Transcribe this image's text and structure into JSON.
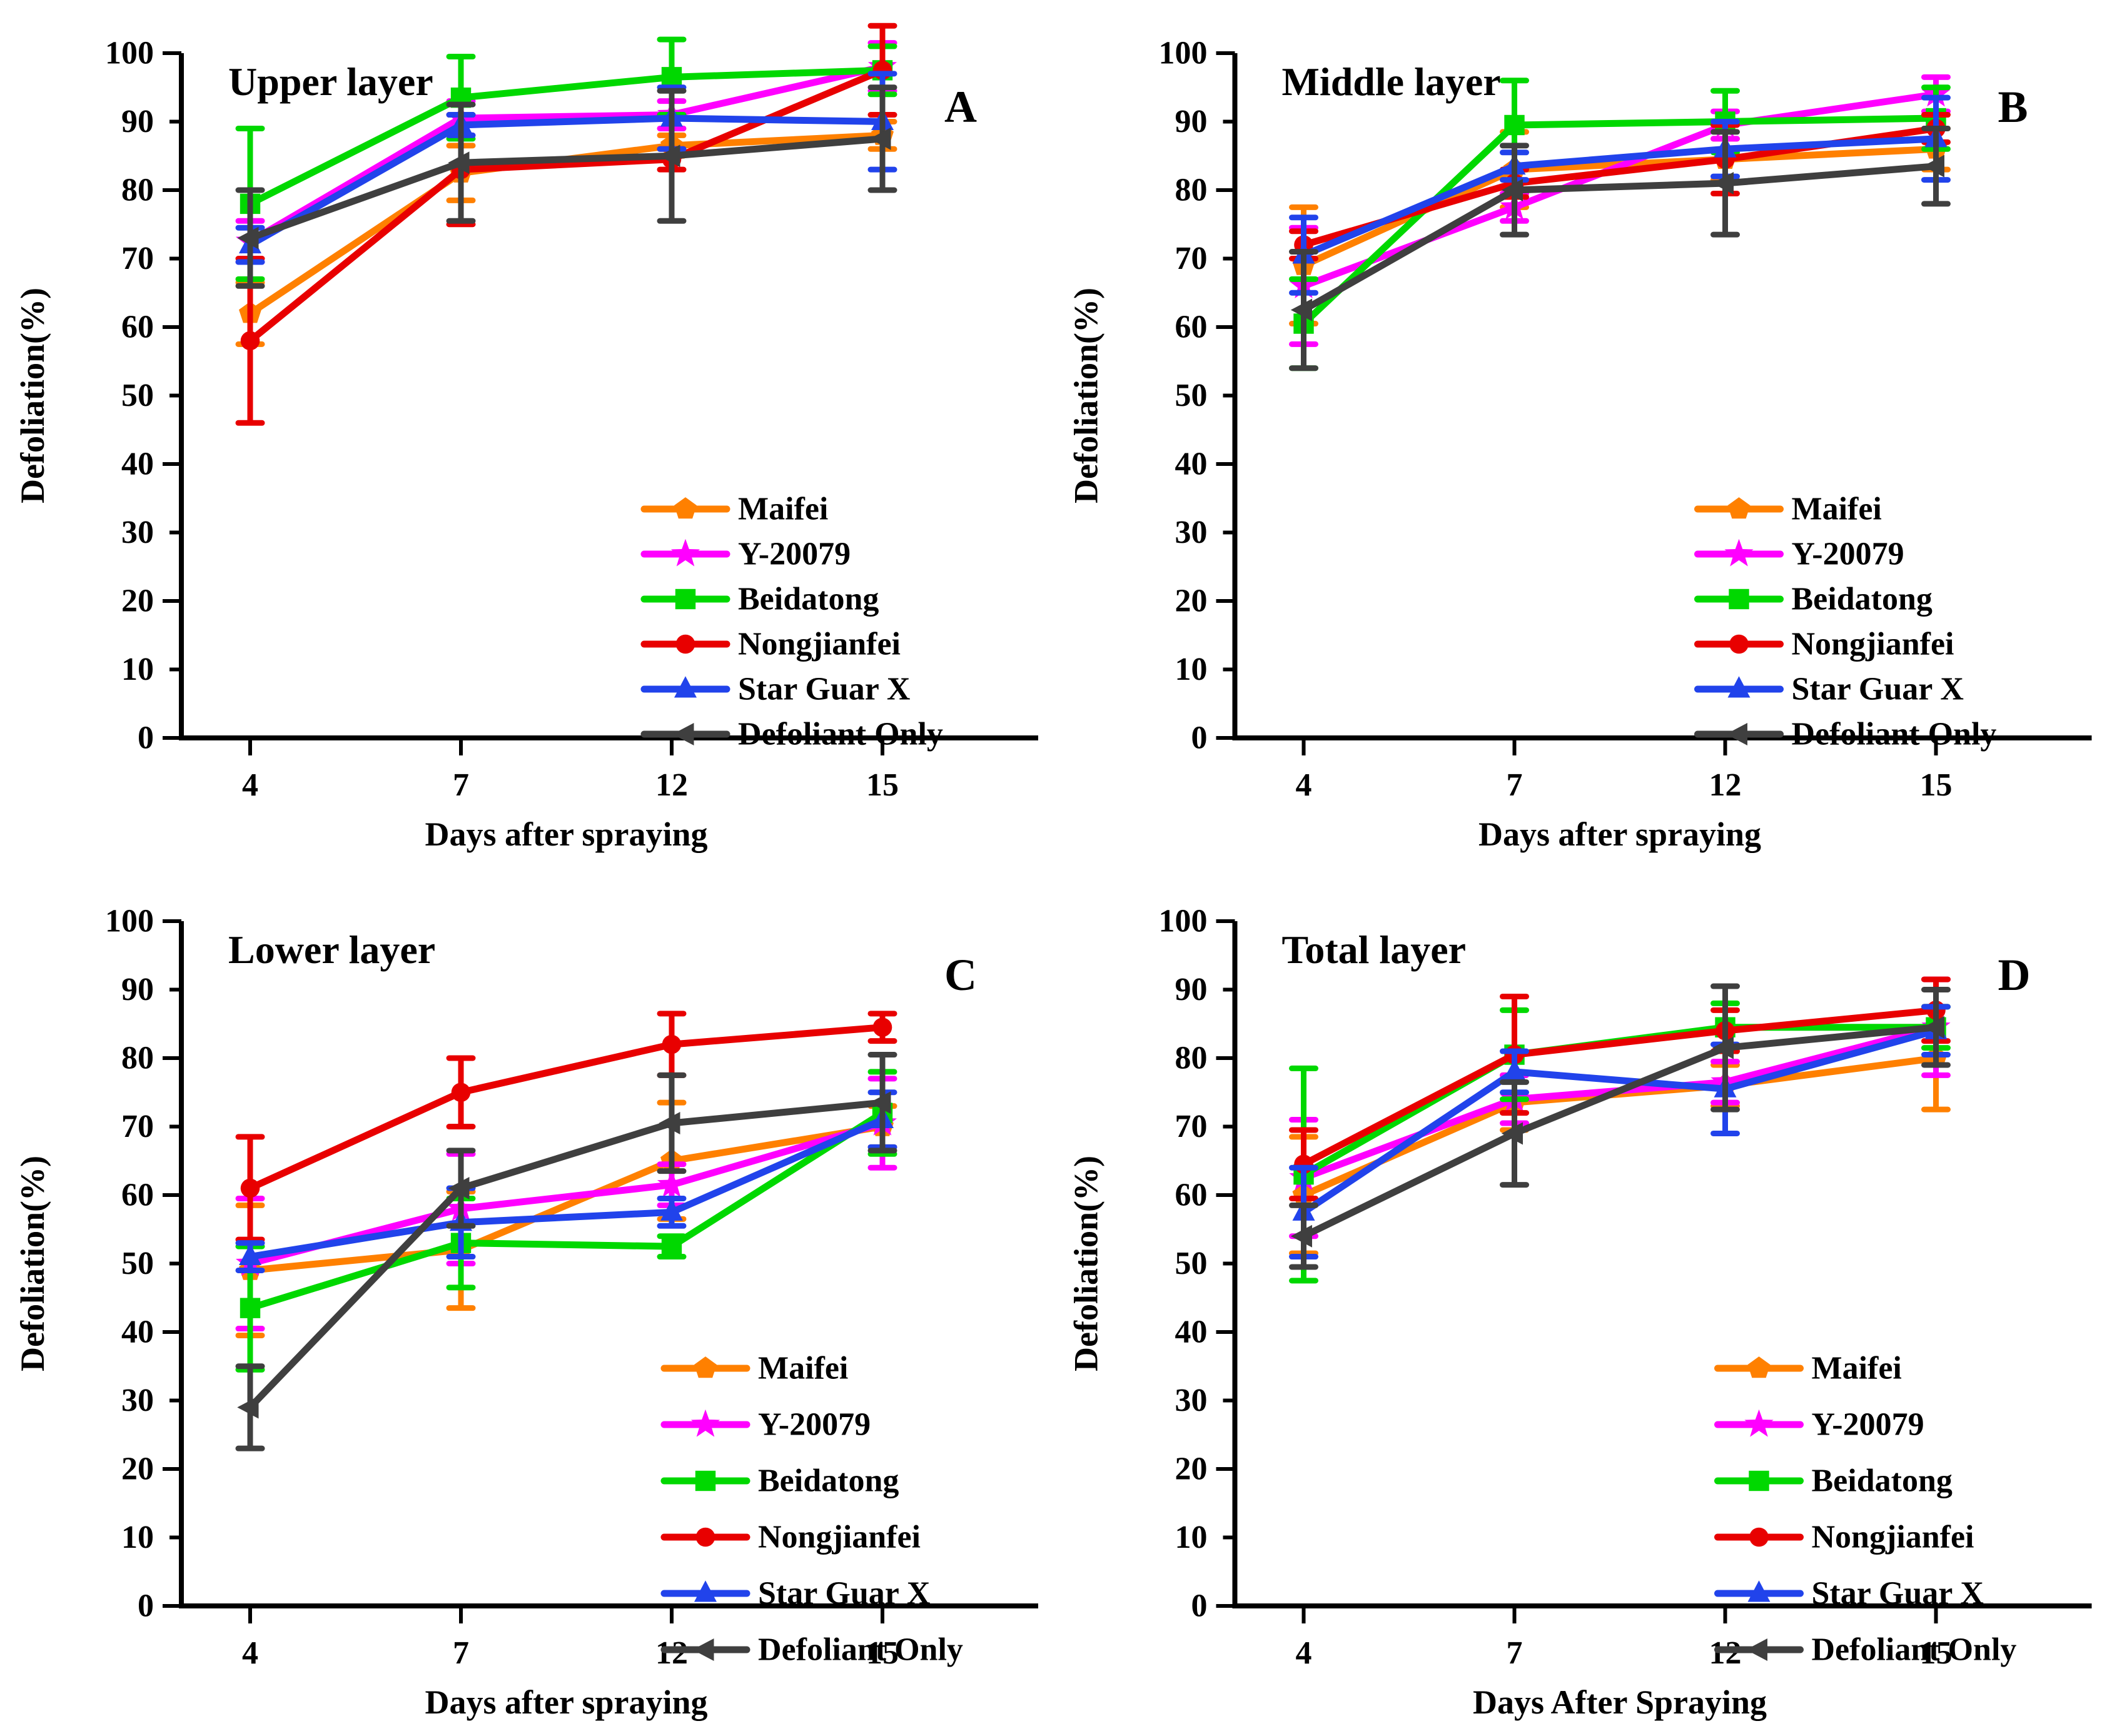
{
  "page": {
    "background": "#ffffff"
  },
  "legend_labels": [
    "Maifei",
    "Y-20079",
    "Beidatong",
    "Nongjianfei",
    "Star Guar X",
    "Defoliant Only"
  ],
  "colors": {
    "maifei": "#FF8000",
    "y20079": "#FF00FF",
    "beidatong": "#00D800",
    "nongjianfei": "#E80000",
    "star_guar_x": "#2143EB",
    "defoliant_only": "#3F3F3F",
    "axis": "#000000"
  },
  "chart_data": [
    {
      "type": "line",
      "panel_letter": "A",
      "title": "Upper layer",
      "xlabel": "Days after spraying",
      "ylabel": "Defoliation(%)",
      "x_categories": [
        "4",
        "7",
        "12",
        "15"
      ],
      "y_ticks": [
        "0",
        "10",
        "20",
        "30",
        "40",
        "50",
        "60",
        "70",
        "80",
        "90",
        "100"
      ],
      "ylim": [
        0,
        100
      ],
      "grid": false,
      "legend_position": "right-center",
      "series": [
        {
          "name": "Maifei",
          "color": "#FF8000",
          "marker": "pentagon",
          "values": [
            62,
            82.5,
            86.5,
            88
          ],
          "errors": [
            4.5,
            4,
            1.5,
            2
          ]
        },
        {
          "name": "Y-20079",
          "color": "#FF00FF",
          "marker": "star",
          "values": [
            72.5,
            90.5,
            91,
            98
          ],
          "errors": [
            3,
            2.5,
            2,
            3.5
          ]
        },
        {
          "name": "Beidatong",
          "color": "#00D800",
          "marker": "square",
          "values": [
            78,
            93.5,
            96.5,
            97.5
          ],
          "errors": [
            11,
            6,
            5.5,
            3.5
          ]
        },
        {
          "name": "Nongjianfei",
          "color": "#E80000",
          "marker": "circle",
          "values": [
            58,
            83,
            84.5,
            97.5
          ],
          "errors": [
            12,
            8,
            1.5,
            6.5
          ]
        },
        {
          "name": "Star Guar X",
          "color": "#2143EB",
          "marker": "triangle-up",
          "values": [
            72,
            89.5,
            90.5,
            90
          ],
          "errors": [
            2.5,
            1.5,
            4.5,
            7
          ]
        },
        {
          "name": "Defoliant Only",
          "color": "#3F3F3F",
          "marker": "triangle-left",
          "values": [
            73,
            84,
            85,
            87.5
          ],
          "errors": [
            7,
            8.5,
            9.5,
            7.5
          ]
        }
      ]
    },
    {
      "type": "line",
      "panel_letter": "B",
      "title": "Middle layer",
      "xlabel": "Days after spraying",
      "ylabel": "Defoliation(%)",
      "x_categories": [
        "4",
        "7",
        "12",
        "15"
      ],
      "y_ticks": [
        "0",
        "10",
        "20",
        "30",
        "40",
        "50",
        "60",
        "70",
        "80",
        "90",
        "100"
      ],
      "ylim": [
        0,
        100
      ],
      "grid": false,
      "legend_position": "right-center",
      "series": [
        {
          "name": "Maifei",
          "color": "#FF8000",
          "marker": "pentagon",
          "values": [
            69,
            83,
            84.5,
            86
          ],
          "errors": [
            8.5,
            5.5,
            3,
            3
          ]
        },
        {
          "name": "Y-20079",
          "color": "#FF00FF",
          "marker": "star",
          "values": [
            66,
            77.5,
            89.5,
            94
          ],
          "errors": [
            8.5,
            2,
            2,
            2.5
          ]
        },
        {
          "name": "Beidatong",
          "color": "#00D800",
          "marker": "square",
          "values": [
            60.5,
            89.5,
            90,
            90.5
          ],
          "errors": [
            6.5,
            6.5,
            4.5,
            4.5
          ]
        },
        {
          "name": "Nongjianfei",
          "color": "#E80000",
          "marker": "circle",
          "values": [
            72,
            81,
            84.5,
            89
          ],
          "errors": [
            2,
            2,
            5,
            2
          ]
        },
        {
          "name": "Star Guar X",
          "color": "#2143EB",
          "marker": "triangle-up",
          "values": [
            70.5,
            83.5,
            86,
            87.5
          ],
          "errors": [
            5.5,
            2,
            4,
            6
          ]
        },
        {
          "name": "Defoliant Only",
          "color": "#3F3F3F",
          "marker": "triangle-left",
          "values": [
            62.5,
            80,
            81,
            83.5
          ],
          "errors": [
            8.5,
            6.5,
            7.5,
            5.5
          ]
        }
      ]
    },
    {
      "type": "line",
      "panel_letter": "C",
      "title": "Lower layer",
      "xlabel": "Days after spraying",
      "ylabel": "Defoliation(%)",
      "x_categories": [
        "4",
        "7",
        "12",
        "15"
      ],
      "y_ticks": [
        "0",
        "10",
        "20",
        "30",
        "40",
        "50",
        "60",
        "70",
        "80",
        "90",
        "100"
      ],
      "ylim": [
        0,
        100
      ],
      "grid": false,
      "legend_position": "bottom-right",
      "series": [
        {
          "name": "Maifei",
          "color": "#FF8000",
          "marker": "pentagon",
          "values": [
            49,
            52,
            65,
            70
          ],
          "errors": [
            9.5,
            8.5,
            8.5,
            3
          ]
        },
        {
          "name": "Y-20079",
          "color": "#FF00FF",
          "marker": "star",
          "values": [
            50,
            58,
            61.5,
            70.5
          ],
          "errors": [
            9.5,
            8,
            3,
            6.5
          ]
        },
        {
          "name": "Beidatong",
          "color": "#00D800",
          "marker": "square",
          "values": [
            43.5,
            53,
            52.5,
            72
          ],
          "errors": [
            9,
            6.5,
            1.5,
            6
          ]
        },
        {
          "name": "Nongjianfei",
          "color": "#E80000",
          "marker": "circle",
          "values": [
            61,
            75,
            82,
            84.5
          ],
          "errors": [
            7.5,
            5,
            4.5,
            2
          ]
        },
        {
          "name": "Star Guar X",
          "color": "#2143EB",
          "marker": "triangle-up",
          "values": [
            51,
            56,
            57.5,
            71
          ],
          "errors": [
            2,
            5,
            2,
            4
          ]
        },
        {
          "name": "Defoliant Only",
          "color": "#3F3F3F",
          "marker": "triangle-left",
          "values": [
            29,
            61,
            70.5,
            73.5
          ],
          "errors": [
            6,
            5.5,
            7,
            7
          ]
        }
      ]
    },
    {
      "type": "line",
      "panel_letter": "D",
      "title": "Total layer",
      "xlabel": "Days After Spraying",
      "ylabel": "Defoliation(%)",
      "x_categories": [
        "4",
        "7",
        "12",
        "15"
      ],
      "y_ticks": [
        "0",
        "10",
        "20",
        "30",
        "40",
        "50",
        "60",
        "70",
        "80",
        "90",
        "100"
      ],
      "ylim": [
        0,
        100
      ],
      "grid": false,
      "legend_position": "bottom-right",
      "series": [
        {
          "name": "Maifei",
          "color": "#FF8000",
          "marker": "pentagon",
          "values": [
            60,
            73.5,
            76,
            80
          ],
          "errors": [
            8.5,
            4,
            3,
            7.5
          ]
        },
        {
          "name": "Y-20079",
          "color": "#FF00FF",
          "marker": "star",
          "values": [
            62.5,
            74,
            76.5,
            84.5
          ],
          "errors": [
            8.5,
            3.5,
            3,
            7
          ]
        },
        {
          "name": "Beidatong",
          "color": "#00D800",
          "marker": "square",
          "values": [
            63,
            80.5,
            84.5,
            84.5
          ],
          "errors": [
            15.5,
            6.5,
            3.5,
            3
          ]
        },
        {
          "name": "Nongjianfei",
          "color": "#E80000",
          "marker": "circle",
          "values": [
            64.5,
            80.5,
            84,
            87
          ],
          "errors": [
            5,
            8.5,
            3,
            4.5
          ]
        },
        {
          "name": "Star Guar X",
          "color": "#2143EB",
          "marker": "triangle-up",
          "values": [
            57.5,
            78,
            75.5,
            84
          ],
          "errors": [
            6.5,
            3,
            6.5,
            3.5
          ]
        },
        {
          "name": "Defoliant Only",
          "color": "#3F3F3F",
          "marker": "triangle-left",
          "values": [
            54,
            69,
            81.5,
            84.5
          ],
          "errors": [
            4.5,
            7.5,
            9,
            5.5
          ]
        }
      ]
    }
  ]
}
